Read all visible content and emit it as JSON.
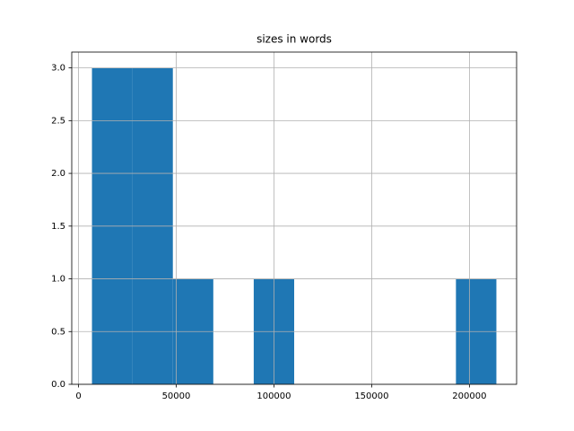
{
  "chart_data": {
    "type": "histogram",
    "title": "sizes in words",
    "bins": [
      6900,
      27590,
      48280,
      68970,
      89660,
      110350,
      131040,
      151730,
      172420,
      193110,
      213800
    ],
    "values": [
      3,
      3,
      1,
      0,
      1,
      0,
      0,
      0,
      0,
      1
    ],
    "color": "#1f77b4",
    "xlim": [
      -3445,
      224145
    ],
    "xticks": [
      0,
      50000,
      100000,
      150000,
      200000
    ],
    "ylim": [
      0,
      3.15
    ],
    "yticks": [
      {
        "value": 0,
        "label": "0.0"
      },
      0.5,
      {
        "value": 1,
        "label": "1.0"
      },
      1.5,
      {
        "value": 2,
        "label": "2.0"
      },
      2.5,
      {
        "value": 3,
        "label": "3.0"
      }
    ],
    "grid": true
  }
}
